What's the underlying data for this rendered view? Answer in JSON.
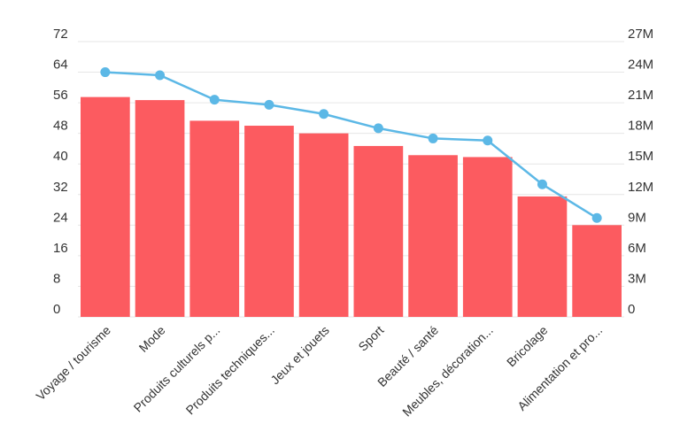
{
  "chart_data": {
    "type": "bar",
    "categories": [
      "Voyage / tourisme",
      "Mode",
      "Produits culturels p...",
      "Produits techniques...",
      "Jeux et jouets",
      "Sport",
      "Beauté / santé",
      "Meubles, décoration...",
      "Bricolage",
      "Alimentation et pro..."
    ],
    "series": [
      {
        "type": "bar",
        "axis": "left",
        "values": [
          57.5,
          56.7,
          51.3,
          50.0,
          48.0,
          44.7,
          42.3,
          41.8,
          31.5,
          24.0
        ]
      },
      {
        "type": "line",
        "axis": "right",
        "values": [
          24000000,
          23700000,
          21300000,
          20800000,
          19900000,
          18500000,
          17500000,
          17300000,
          13000000,
          9700000
        ]
      }
    ],
    "y_left": {
      "ticks": [
        "72",
        "64",
        "56",
        "48",
        "40",
        "32",
        "24",
        "16",
        "8",
        "0"
      ],
      "ylim": [
        0,
        72
      ]
    },
    "y_right": {
      "ticks": [
        "27M",
        "24M",
        "21M",
        "18M",
        "15M",
        "12M",
        "9M",
        "6M",
        "3M",
        "0"
      ],
      "ylim": [
        0,
        27000000
      ]
    },
    "grid": true,
    "legend": "none",
    "colors": {
      "bar": "#fc5b60",
      "line": "#5cb8e6",
      "grid": "#e6e6e6",
      "text": "#333333"
    }
  }
}
